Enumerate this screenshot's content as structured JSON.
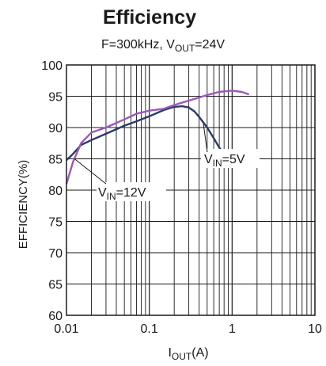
{
  "chart_data": {
    "type": "line",
    "title": "Efficiency",
    "subtitle": {
      "f": "F=300kHz, V",
      "sub": "OUT",
      "tail": "=24V"
    },
    "xlabel": {
      "main": "I",
      "sub": "OUT",
      "tail": "(A)"
    },
    "ylabel": "EFFICIENCY(%)",
    "xscale": "log",
    "xlim": [
      0.01,
      10
    ],
    "ylim": [
      60,
      100
    ],
    "xticks": [
      0.01,
      0.1,
      1,
      10
    ],
    "xtick_labels": [
      "0.01",
      "0.1",
      "1",
      "10"
    ],
    "yticks": [
      60,
      65,
      70,
      75,
      80,
      85,
      90,
      95,
      100
    ],
    "ytick_labels": [
      "60",
      "65",
      "70",
      "75",
      "80",
      "85",
      "90",
      "95",
      "100"
    ],
    "grid": true,
    "series": [
      {
        "name": {
          "main": "V",
          "sub": "IN",
          "tail": "=5V"
        },
        "color": "#2b3a67",
        "x": [
          0.01,
          0.012,
          0.015,
          0.02,
          0.03,
          0.05,
          0.07,
          0.1,
          0.15,
          0.2,
          0.25,
          0.3,
          0.35,
          0.4,
          0.5,
          0.6,
          0.7,
          0.8
        ],
        "y": [
          84.8,
          85.8,
          87.2,
          88.0,
          89.0,
          90.3,
          91.0,
          91.8,
          92.8,
          93.3,
          93.4,
          93.2,
          92.6,
          91.7,
          90.0,
          88.3,
          86.8,
          85.8
        ]
      },
      {
        "name": {
          "main": "V",
          "sub": "IN",
          "tail": "=12V"
        },
        "color": "#9b59b6",
        "x": [
          0.01,
          0.012,
          0.015,
          0.02,
          0.03,
          0.05,
          0.07,
          0.1,
          0.15,
          0.2,
          0.3,
          0.4,
          0.5,
          0.7,
          1.0,
          1.3,
          1.6
        ],
        "y": [
          81.0,
          84.5,
          87.5,
          89.2,
          90.0,
          91.3,
          92.2,
          92.7,
          93.0,
          93.6,
          94.3,
          94.8,
          95.2,
          95.7,
          95.9,
          95.7,
          95.3
        ]
      }
    ]
  }
}
